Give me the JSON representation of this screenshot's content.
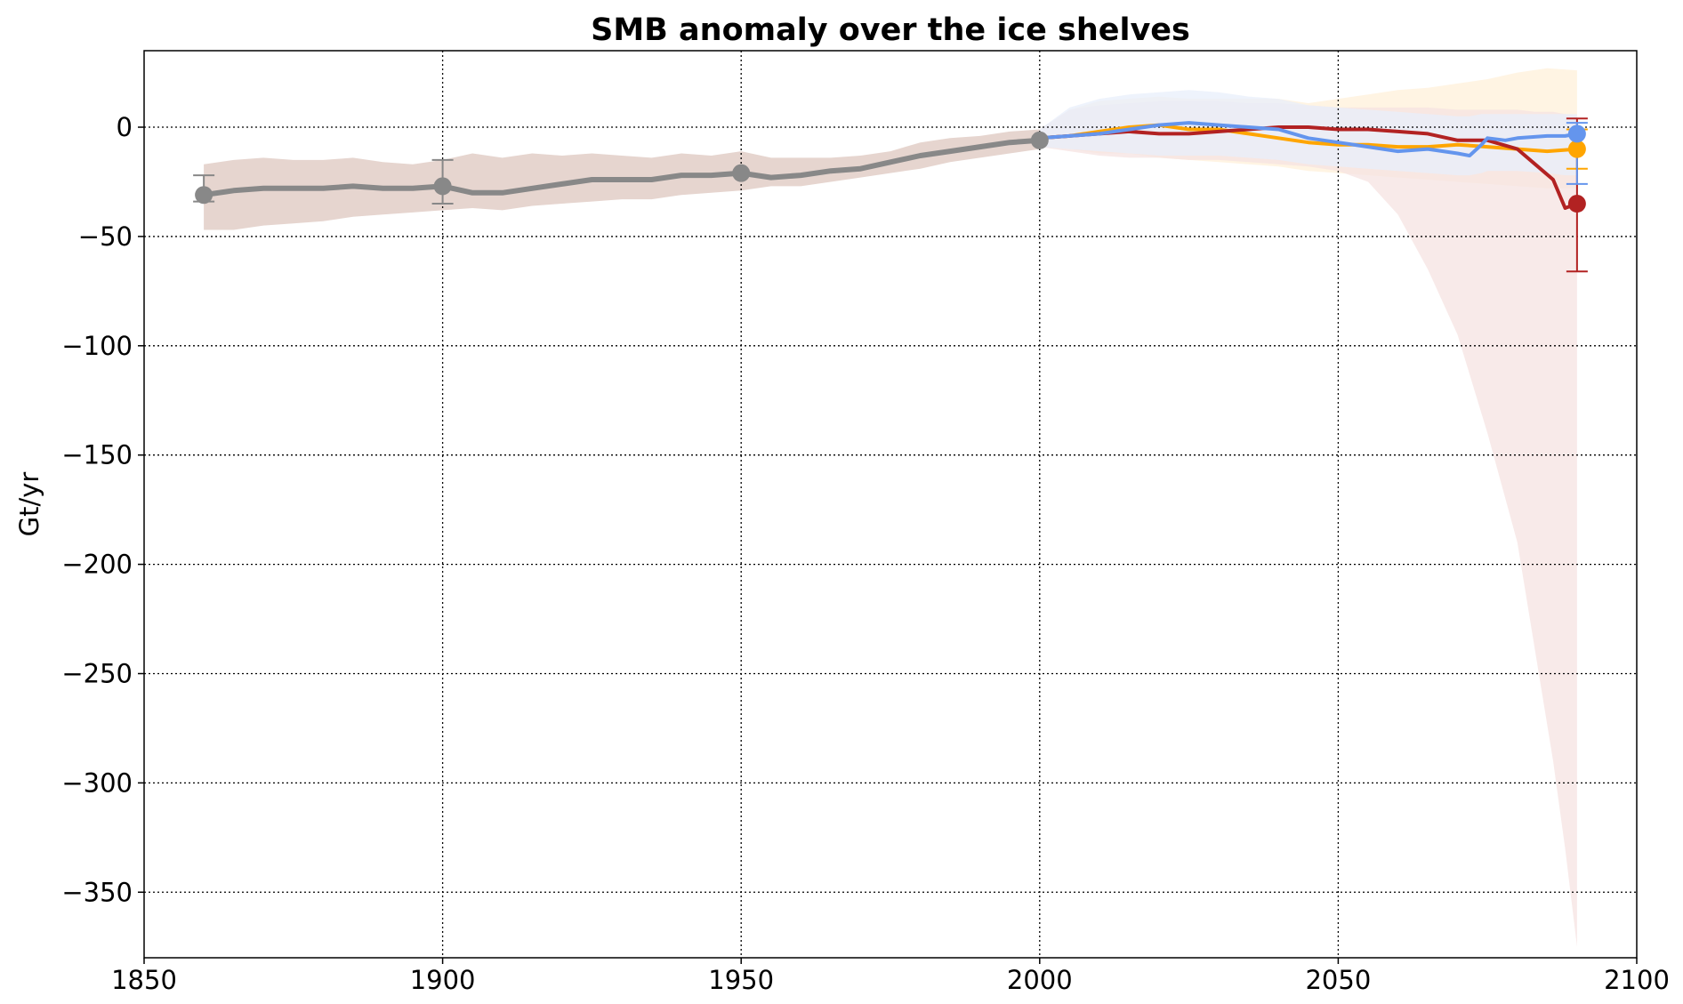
{
  "chart_data": {
    "type": "line",
    "title": "SMB anomaly over the ice shelves",
    "xlabel": "",
    "ylabel": "Gt/yr",
    "xlim": [
      1850,
      2100
    ],
    "ylim": [
      -380,
      35
    ],
    "xticks": [
      1850,
      1900,
      1950,
      2000,
      2050,
      2100
    ],
    "yticks": [
      0,
      -50,
      -100,
      -150,
      -200,
      -250,
      -300,
      -350
    ],
    "xtick_labels": [
      "1850",
      "1900",
      "1950",
      "2000",
      "2050",
      "2100"
    ],
    "ytick_labels": [
      "0",
      "−50",
      "−100",
      "−150",
      "−200",
      "−250",
      "−300",
      "−350"
    ],
    "grid": true,
    "series": [
      {
        "color": "#888888",
        "band_color": "#e6d5cf",
        "x": [
          1860,
          1865,
          1870,
          1875,
          1880,
          1885,
          1890,
          1895,
          1900,
          1905,
          1910,
          1915,
          1920,
          1925,
          1930,
          1935,
          1940,
          1945,
          1950,
          1955,
          1960,
          1965,
          1970,
          1975,
          1980,
          1985,
          1990,
          1995,
          2000
        ],
        "y": [
          -31,
          -29,
          -28,
          -28,
          -28,
          -27,
          -28,
          -28,
          -27,
          -30,
          -30,
          -28,
          -26,
          -24,
          -24,
          -24,
          -22,
          -22,
          -21,
          -23,
          -22,
          -20,
          -19,
          -16,
          -13,
          -11,
          -9,
          -7,
          -6
        ],
        "lower": [
          -47,
          -47,
          -45,
          -44,
          -43,
          -41,
          -40,
          -39,
          -38,
          -37,
          -38,
          -36,
          -35,
          -34,
          -33,
          -33,
          -31,
          -30,
          -29,
          -27,
          -27,
          -25,
          -23,
          -21,
          -19,
          -16,
          -14,
          -12,
          -10
        ],
        "upper": [
          -17,
          -15,
          -14,
          -15,
          -15,
          -14,
          -16,
          -17,
          -15,
          -12,
          -14,
          -12,
          -13,
          -12,
          -13,
          -14,
          -12,
          -13,
          -11,
          -14,
          -14,
          -14,
          -13,
          -11,
          -7,
          -5,
          -4,
          -2,
          -1
        ],
        "markers": [
          {
            "x": 1860,
            "y": -31,
            "err_low": -34,
            "err_high": -22
          },
          {
            "x": 1900,
            "y": -27,
            "err_low": -35,
            "err_high": -15
          },
          {
            "x": 1950,
            "y": -21,
            "err_low": -21,
            "err_high": -21
          },
          {
            "x": 2000,
            "y": -6,
            "err_low": -6,
            "err_high": -6
          }
        ]
      },
      {
        "color": "#ffa500",
        "band_color": "#fff0d9",
        "x": [
          2000,
          2005,
          2010,
          2015,
          2020,
          2025,
          2030,
          2035,
          2040,
          2045,
          2050,
          2055,
          2060,
          2065,
          2070,
          2075,
          2080,
          2085,
          2090
        ],
        "y": [
          -5,
          -4,
          -2,
          0,
          1,
          -1,
          -1,
          -3,
          -5,
          -7,
          -8,
          -8,
          -9,
          -9,
          -8,
          -9,
          -10,
          -11,
          -10
        ],
        "lower": [
          -9,
          -10,
          -12,
          -12,
          -14,
          -15,
          -16,
          -17,
          -18,
          -20,
          -21,
          -22,
          -23,
          -24,
          -25,
          -26,
          -27,
          -28,
          -28
        ],
        "upper": [
          -1,
          8,
          12,
          13,
          14,
          13,
          13,
          13,
          13,
          11,
          13,
          15,
          17,
          18,
          20,
          22,
          25,
          27,
          26
        ],
        "markers": [
          {
            "x": 2090,
            "y": -10,
            "err_low": -19,
            "err_high": -1
          }
        ]
      },
      {
        "color": "#b22222",
        "band_color": "#f5e3e1",
        "x": [
          2000,
          2005,
          2010,
          2015,
          2020,
          2025,
          2030,
          2035,
          2040,
          2045,
          2050,
          2055,
          2060,
          2065,
          2070,
          2075,
          2080,
          2083,
          2086,
          2088,
          2090
        ],
        "y": [
          -5,
          -4,
          -3,
          -2,
          -3,
          -3,
          -2,
          -1,
          0,
          0,
          -1,
          -1,
          -2,
          -3,
          -6,
          -6,
          -10,
          -17,
          -24,
          -37,
          -35
        ],
        "lower": [
          -9,
          -11,
          -13,
          -14,
          -14,
          -15,
          -15,
          -16,
          -17,
          -18,
          -20,
          -25,
          -40,
          -65,
          -95,
          -140,
          -190,
          -240,
          -290,
          -330,
          -375
        ],
        "upper": [
          -1,
          8,
          10,
          11,
          12,
          12,
          12,
          11,
          11,
          10,
          9,
          9,
          9,
          9,
          8,
          8,
          8,
          7,
          7,
          6,
          5
        ],
        "markers": [
          {
            "x": 2090,
            "y": -35,
            "err_low": -66,
            "err_high": 4
          }
        ]
      },
      {
        "color": "#6495ed",
        "band_color": "#e8effb",
        "x": [
          2000,
          2005,
          2010,
          2015,
          2020,
          2025,
          2030,
          2035,
          2040,
          2045,
          2050,
          2055,
          2060,
          2065,
          2070,
          2072,
          2074,
          2075,
          2078,
          2080,
          2085,
          2088,
          2090
        ],
        "y": [
          -5,
          -4,
          -3,
          -1,
          1,
          2,
          1,
          0,
          -1,
          -5,
          -7,
          -9,
          -11,
          -10,
          -12,
          -13,
          -8,
          -5,
          -6,
          -5,
          -4,
          -4,
          -3
        ],
        "lower": [
          -9,
          -10,
          -11,
          -12,
          -13,
          -13,
          -13,
          -14,
          -15,
          -17,
          -18,
          -19,
          -20,
          -21,
          -22,
          -22,
          -21,
          -20,
          -20,
          -20,
          -21,
          -22,
          -22
        ],
        "upper": [
          -1,
          9,
          13,
          15,
          16,
          17,
          16,
          14,
          13,
          10,
          9,
          8,
          7,
          6,
          5,
          5,
          6,
          6,
          6,
          6,
          6,
          6,
          6
        ],
        "markers": [
          {
            "x": 2090,
            "y": -3,
            "err_low": -26,
            "err_high": 2
          }
        ]
      }
    ]
  }
}
